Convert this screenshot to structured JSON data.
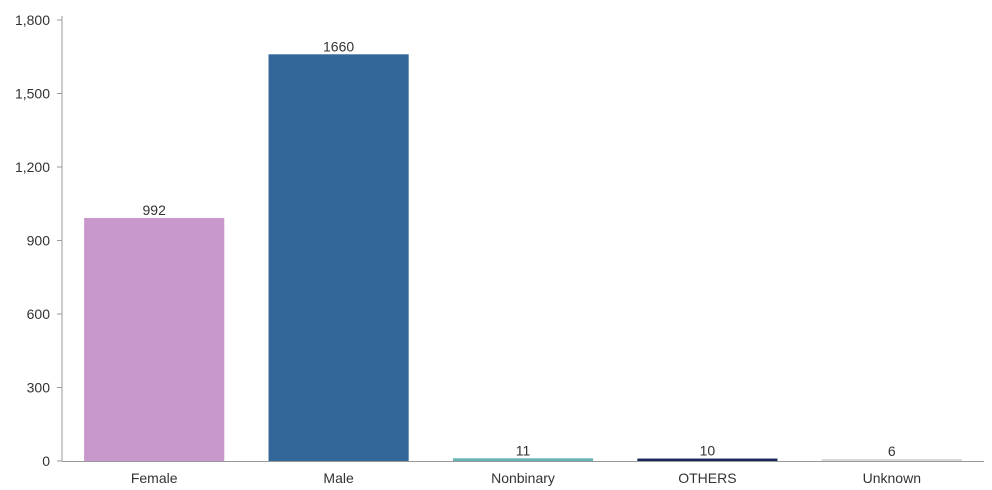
{
  "chart_data": {
    "type": "bar",
    "title": "",
    "xlabel": "",
    "ylabel": "",
    "categories": [
      "Female",
      "Male",
      "Nonbinary",
      "OTHERS",
      "Unknown"
    ],
    "values": [
      992,
      1660,
      11,
      10,
      6
    ],
    "value_labels": [
      "992",
      "1660",
      "11",
      "10",
      "6"
    ],
    "colors": [
      "#c897cb",
      "#336699",
      "#66b3b3",
      "#1a2a5a",
      "#d9d9d9"
    ],
    "ylim": [
      0,
      1800
    ],
    "yticks": [
      0,
      300,
      600,
      900,
      1200,
      1500,
      1800
    ],
    "ytick_labels": [
      "0",
      "300",
      "600",
      "900",
      "1,200",
      "1,500",
      "1,800"
    ],
    "grid": false,
    "legend": "none"
  }
}
